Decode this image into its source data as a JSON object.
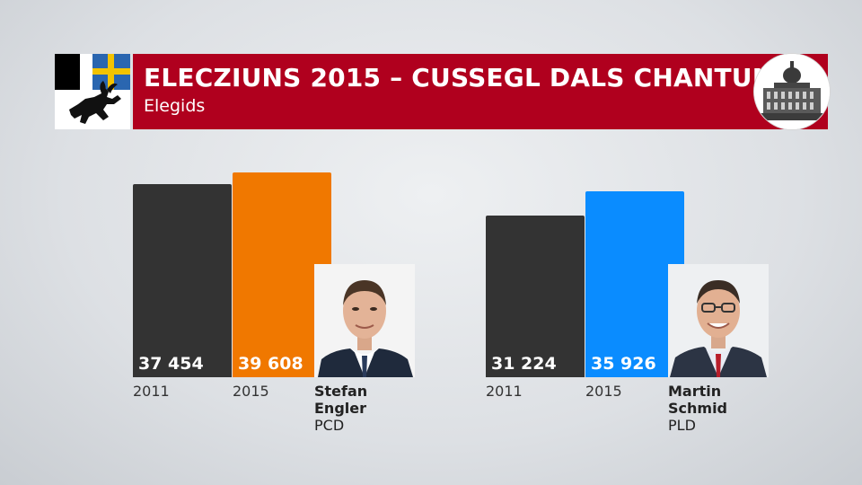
{
  "header": {
    "title": "ELECZIUNS 2015 – CUSSEGL DALS CHANTUNS",
    "subtitle": "Elegids"
  },
  "colors": {
    "header_red": "#b0001e",
    "previous_year": "#333333",
    "engler_2015": "#f07800",
    "schmid_2015": "#0a8cff"
  },
  "icons": {
    "flag": "graubuenden-coat-of-arms-icon",
    "seal": "federal-palace-icon"
  },
  "chart_data": [
    {
      "type": "bar",
      "categories": [
        "2011",
        "2015"
      ],
      "values": [
        37454,
        39608
      ],
      "value_labels": [
        "37 454",
        "39 608"
      ],
      "bar_colors": [
        "#333333",
        "#f07800"
      ],
      "candidate": {
        "first_name": "Stefan",
        "last_name": "Engler",
        "party": "PCD"
      }
    },
    {
      "type": "bar",
      "categories": [
        "2011",
        "2015"
      ],
      "values": [
        31224,
        35926
      ],
      "value_labels": [
        "31 224",
        "35 926"
      ],
      "bar_colors": [
        "#333333",
        "#0a8cff"
      ],
      "candidate": {
        "first_name": "Martin",
        "last_name": "Schmid",
        "party": "PLD"
      }
    }
  ]
}
